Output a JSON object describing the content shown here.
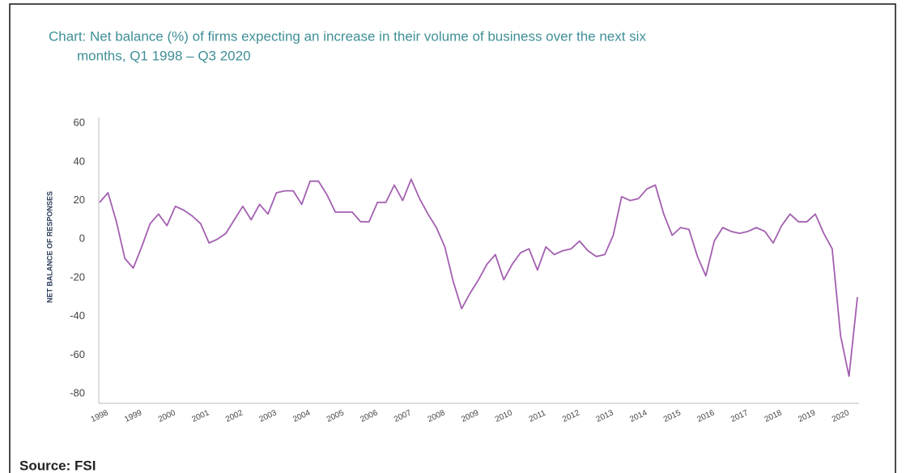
{
  "chart_data": {
    "type": "line",
    "title_line1": "Chart: Net balance (%) of firms expecting an increase in their volume of business over the next six",
    "title_line2": "months, Q1 1998 – Q3 2020",
    "y_label": "NET BALANCE OF RESPONSES",
    "source": "Source: FSI",
    "categories": [
      "1998",
      null,
      null,
      null,
      "1999",
      null,
      null,
      null,
      "2000",
      null,
      null,
      null,
      "2001",
      null,
      null,
      null,
      "2002",
      null,
      null,
      null,
      "2003",
      null,
      null,
      null,
      "2004",
      null,
      null,
      null,
      "2005",
      null,
      null,
      null,
      "2006",
      null,
      null,
      null,
      "2007",
      null,
      null,
      null,
      "2008",
      null,
      null,
      null,
      "2009",
      null,
      null,
      null,
      "2010",
      null,
      null,
      null,
      "2011",
      null,
      null,
      null,
      "2012",
      null,
      null,
      null,
      "2013",
      null,
      null,
      null,
      "2014",
      null,
      null,
      null,
      "2015",
      null,
      null,
      null,
      "2016",
      null,
      null,
      null,
      "2017",
      null,
      null,
      null,
      "2018",
      null,
      null,
      null,
      "2019",
      null,
      null,
      null,
      "2020",
      null,
      null
    ],
    "series": [
      {
        "name": "Net balance",
        "color": "#a35fb0",
        "values": [
          19,
          24,
          9,
          -10,
          -15,
          -4,
          8,
          13,
          7,
          17,
          15,
          12,
          8,
          -2,
          0,
          3,
          10,
          17,
          10,
          18,
          13,
          24,
          25,
          25,
          18,
          30,
          30,
          23,
          14,
          14,
          14,
          9,
          9,
          19,
          19,
          28,
          20,
          31,
          21,
          13,
          6,
          -4,
          -22,
          -36,
          -28,
          -21,
          -13,
          -8,
          -21,
          -13,
          -7,
          -5,
          -16,
          -4,
          -8,
          -6,
          -5,
          -1,
          -6,
          -9,
          -8,
          2,
          22,
          20,
          21,
          26,
          28,
          13,
          2,
          6,
          5,
          -9,
          -19,
          -1,
          6,
          4,
          3,
          4,
          6,
          4,
          -2,
          7,
          13,
          9,
          9,
          13,
          3,
          -5,
          -50,
          -71,
          -30
        ]
      }
    ],
    "ylim": [
      -85,
      63
    ],
    "yticks": [
      -80,
      -60,
      -40,
      -20,
      0,
      20,
      40,
      60
    ],
    "grid": false
  }
}
